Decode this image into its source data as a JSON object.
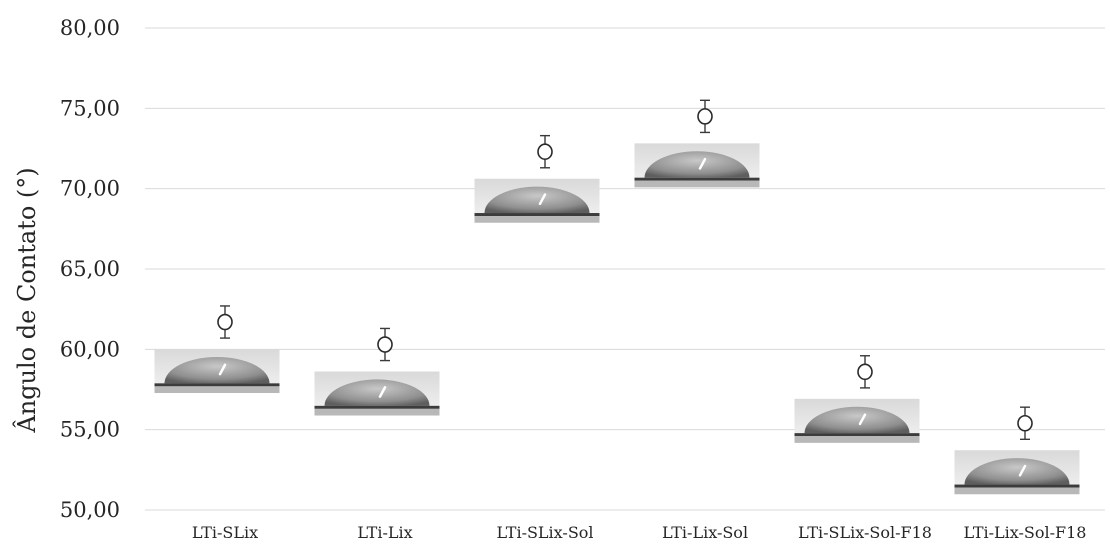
{
  "chart_data": {
    "type": "scatter",
    "ylabel": "Ângulo de Contato (°)",
    "ylim": [
      50,
      80
    ],
    "y_ticks": [
      "50,00",
      "55,00",
      "60,00",
      "65,00",
      "70,00",
      "75,00",
      "80,00"
    ],
    "categories": [
      "LTi-SLix",
      "LTi-Lix",
      "LTi-SLix-Sol",
      "LTi-Lix-Sol",
      "LTi-SLix-Sol-F18",
      "LTi-Lix-Sol-F18"
    ],
    "values": [
      61.7,
      60.3,
      72.3,
      74.5,
      58.6,
      55.4
    ],
    "error": [
      1.0,
      1.0,
      1.0,
      1.0,
      1.0,
      1.0
    ],
    "grid": true,
    "marker": "open-circle",
    "images": [
      "droplet-photo",
      "droplet-photo",
      "droplet-photo",
      "droplet-photo",
      "droplet-photo",
      "droplet-photo"
    ]
  }
}
